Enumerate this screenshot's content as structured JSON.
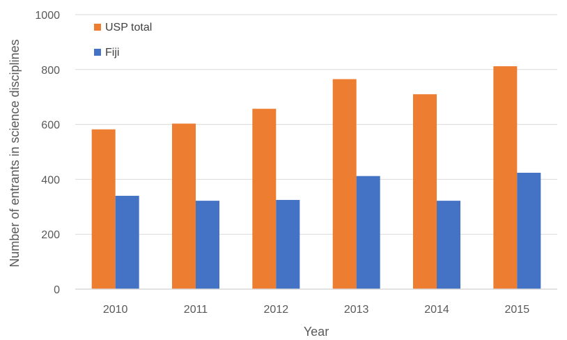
{
  "chart_data": {
    "type": "bar",
    "title": "",
    "xlabel": "Year",
    "ylabel": "Number of entrants in science disciplines",
    "categories": [
      "2010",
      "2011",
      "2012",
      "2013",
      "2014",
      "2015"
    ],
    "series": [
      {
        "name": "USP total",
        "color": "#ED7D31",
        "values": [
          582,
          603,
          657,
          765,
          710,
          812
        ]
      },
      {
        "name": "Fiji",
        "color": "#4472C4",
        "values": [
          340,
          322,
          325,
          412,
          322,
          424
        ]
      }
    ],
    "ylim": [
      0,
      1000
    ],
    "yticks": [
      0,
      200,
      400,
      600,
      800,
      1000
    ],
    "grid": true,
    "legend_position": "top-left"
  }
}
